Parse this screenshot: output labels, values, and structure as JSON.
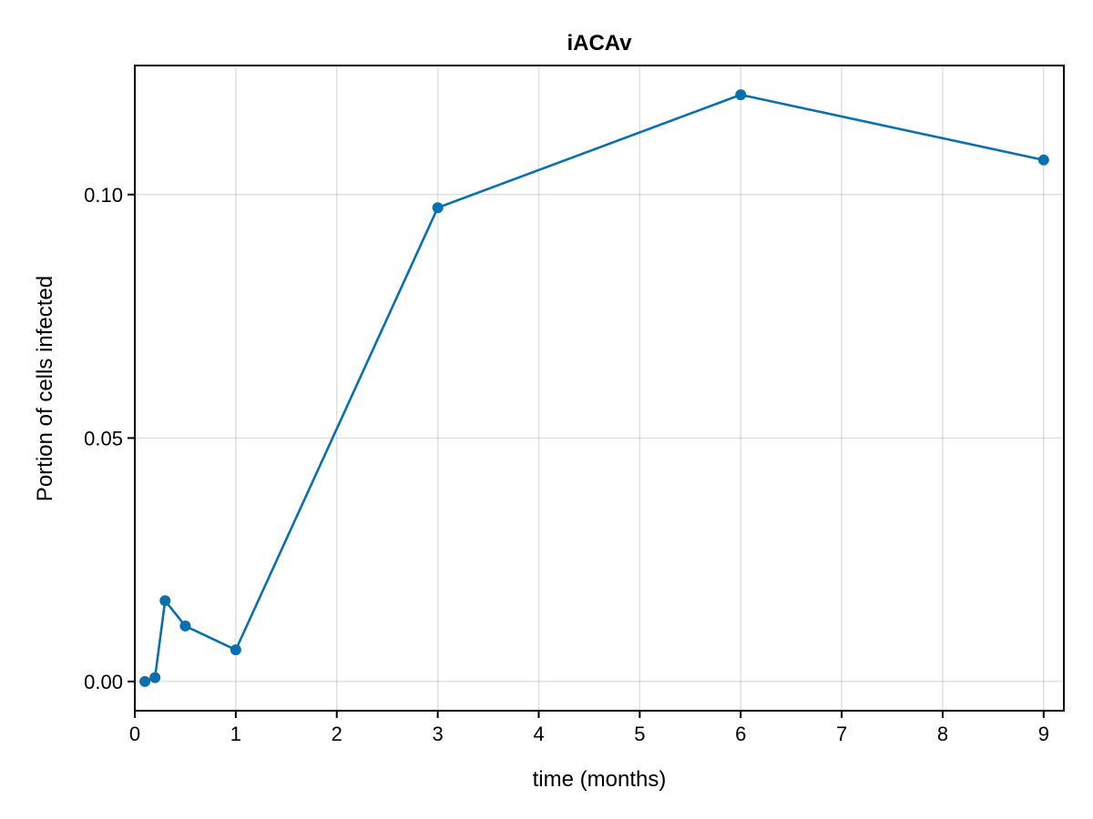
{
  "chart_data": {
    "type": "line",
    "title": "iACAv",
    "xlabel": "time (months)",
    "ylabel": "Portion of cells infected",
    "xlim": [
      0,
      9.2
    ],
    "ylim": [
      -0.006,
      0.1265
    ],
    "x_ticks": [
      0,
      1,
      2,
      3,
      4,
      5,
      6,
      7,
      8,
      9
    ],
    "x_tick_labels": [
      "0",
      "1",
      "2",
      "3",
      "4",
      "5",
      "6",
      "7",
      "8",
      "9"
    ],
    "y_ticks": [
      0,
      0.05,
      0.1
    ],
    "y_tick_labels": [
      "0.00",
      "0.05",
      "0.10"
    ],
    "grid": true,
    "legend": "none",
    "colors": {
      "series": "#0a6fad",
      "axis": "#000000"
    },
    "series": [
      {
        "x": [
          0.1,
          0.2,
          0.3,
          0.5,
          1,
          3,
          6,
          9
        ],
        "values": [
          0.0,
          0.0008,
          0.0166,
          0.0114,
          0.0065,
          0.0973,
          0.1205,
          0.1071
        ]
      }
    ]
  }
}
